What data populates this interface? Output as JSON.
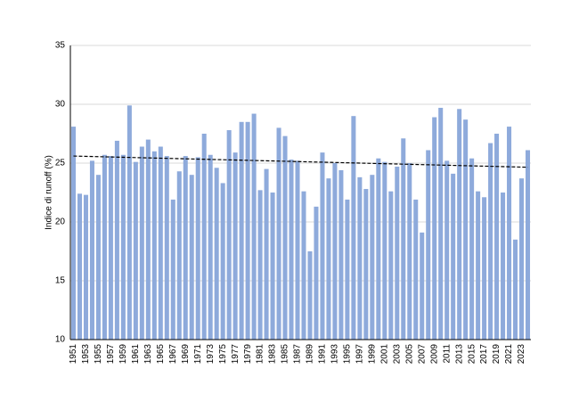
{
  "chart_data": {
    "type": "bar",
    "y_label": "Indice di runoff (%)",
    "categories": [
      "1951",
      null,
      "1953",
      null,
      "1955",
      null,
      "1957",
      null,
      "1959",
      null,
      "1961",
      null,
      "1963",
      null,
      "1965",
      null,
      "1967",
      null,
      "1969",
      null,
      "1971",
      null,
      "1973",
      null,
      "1975",
      null,
      "1977",
      null,
      "1979",
      null,
      "1981",
      null,
      "1983",
      null,
      "1985",
      null,
      "1987",
      null,
      "1989",
      null,
      "1991",
      null,
      "1993",
      null,
      "1995",
      null,
      "1997",
      null,
      "1999",
      null,
      "2001",
      null,
      "2003",
      null,
      "2005",
      null,
      "2007",
      null,
      "2009",
      null,
      "2011",
      null,
      "2013",
      null,
      "2015",
      null,
      "2017",
      null,
      "2019",
      null,
      "2021",
      null,
      "2023",
      null
    ],
    "values": [
      28.1,
      22.4,
      22.3,
      25.2,
      24.0,
      25.7,
      25.6,
      26.9,
      25.7,
      29.9,
      25.1,
      26.4,
      27.0,
      26.0,
      26.4,
      25.6,
      21.9,
      24.3,
      25.6,
      24.0,
      25.5,
      27.5,
      25.7,
      24.6,
      23.3,
      27.8,
      25.9,
      28.5,
      28.5,
      29.2,
      22.7,
      24.5,
      22.5,
      28.0,
      27.3,
      25.3,
      25.2,
      22.6,
      17.5,
      21.3,
      25.9,
      23.7,
      25.0,
      24.4,
      21.9,
      29.0,
      23.8,
      22.8,
      24.0,
      25.4,
      25.1,
      22.6,
      24.7,
      27.1,
      25.0,
      21.9,
      19.1,
      26.1,
      28.9,
      29.7,
      25.2,
      24.1,
      29.6,
      28.7,
      25.4,
      22.6,
      22.1,
      26.7,
      27.5,
      22.5,
      28.1,
      18.5,
      23.7,
      26.1
    ],
    "color": "#8eaadb",
    "trend_line": {
      "values": [
        25.6,
        24.65
      ],
      "color": "#000000"
    },
    "ylim": [
      10,
      35
    ],
    "yticks": [
      10,
      15,
      20,
      25,
      30,
      35
    ],
    "grid": true
  }
}
